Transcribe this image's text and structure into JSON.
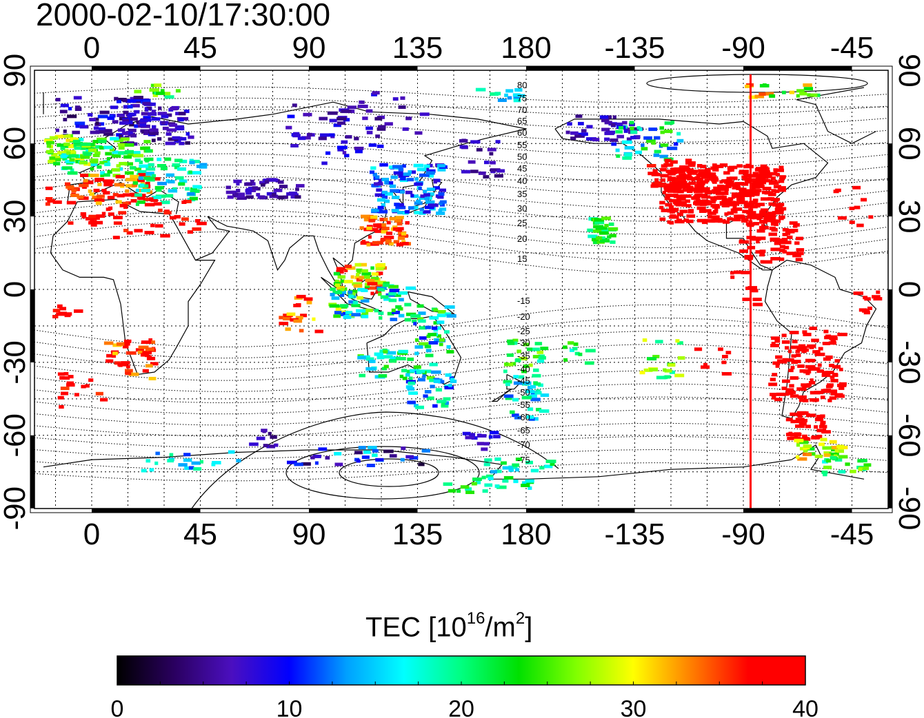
{
  "title": "2000-02-10/17:30:00",
  "map": {
    "top_lon_labels": [
      "0",
      "45",
      "90",
      "135",
      "180",
      "-135",
      "-90",
      "-45"
    ],
    "bottom_lon_labels": [
      "0",
      "45",
      "90",
      "135",
      "180",
      "-135",
      "-90",
      "-45"
    ],
    "left_lat_labels": [
      "90",
      "60",
      "30",
      "0",
      "-30",
      "-60",
      "-90"
    ],
    "right_lat_labels": [
      "90",
      "60",
      "30",
      "0",
      "-30",
      "-60",
      "-90"
    ],
    "contour_labels": [
      "80",
      "75",
      "70",
      "65",
      "60",
      "55",
      "50",
      "45",
      "40",
      "35",
      "30",
      "25",
      "20",
      "15",
      "-15",
      "-20",
      "-25",
      "-30",
      "-35",
      "-40",
      "-45",
      "-50",
      "-55",
      "-60",
      "-65",
      "-70",
      "-75"
    ],
    "marker_longitude": -87,
    "marker_color": "#ff0000"
  },
  "colorbar": {
    "label_prefix": "TEC  [10",
    "label_sup1": "16",
    "label_mid": "/m",
    "label_sup2": "2",
    "label_suffix": "]",
    "ticks": [
      "0",
      "10",
      "20",
      "30",
      "40"
    ],
    "range": [
      0,
      40
    ],
    "stops": [
      "#000000",
      "#2a0060",
      "#4b0fc0",
      "#0000ff",
      "#00a0ff",
      "#00ffff",
      "#00ff80",
      "#00e000",
      "#80ff00",
      "#ffff00",
      "#ff8000",
      "#ff0000",
      "#ff0000"
    ]
  }
}
